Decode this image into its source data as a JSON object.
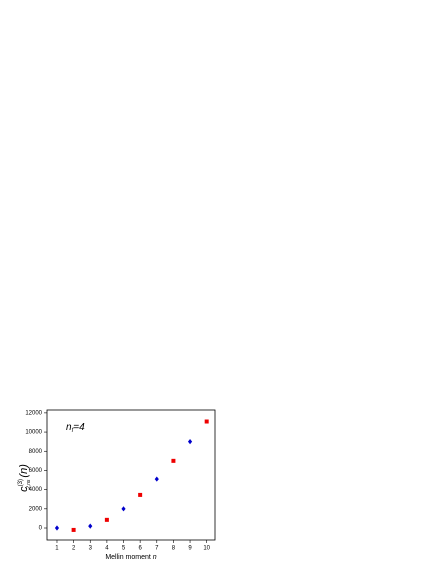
{
  "chart_data": {
    "type": "scatter",
    "annotation": {
      "base": "n",
      "sub": "f",
      "rest": "=4"
    },
    "xlabel": {
      "text": "Mellin moment",
      "var": "n"
    },
    "ylabel": {
      "base": "c",
      "sup": "(3)",
      "sub": "2,ns",
      "arg": "(n)"
    },
    "series": [
      {
        "color": "#0000cc",
        "marker": "diamond",
        "x": [
          1,
          3,
          5,
          7,
          9
        ],
        "values": [
          0,
          200,
          2000,
          5100,
          9000
        ]
      },
      {
        "color": "#ee0000",
        "marker": "square",
        "x": [
          2,
          4,
          6,
          8,
          10
        ],
        "values": [
          -200,
          850,
          3450,
          7000,
          11100
        ]
      }
    ],
    "xlim": [
      0.4,
      10.5
    ],
    "xticks": [
      1,
      2,
      3,
      4,
      5,
      6,
      7,
      8,
      9,
      10
    ],
    "ylim": [
      -1250,
      12300
    ],
    "yticks": [
      0,
      2000,
      4000,
      6000,
      8000,
      10000,
      12000
    ]
  }
}
